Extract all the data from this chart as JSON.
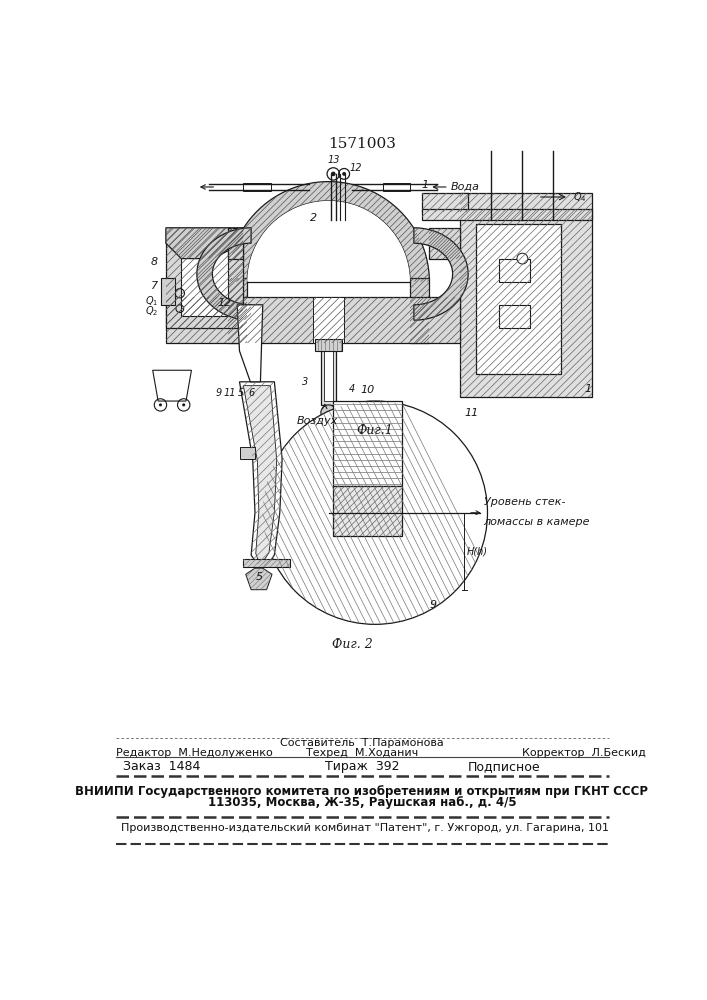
{
  "patent_number": "1571003",
  "fig1_caption": "Фиг.1",
  "fig2_caption": "Фиг. 2",
  "composer": "Составитель  Т.Парамонова",
  "editor": "Редактор  М.Недолуженко",
  "techred": "Техред  М.Ходанич",
  "corrector": "Корректор  Л.Бескид",
  "order": "Заказ  1484",
  "tirage": "Тираж  392",
  "subscription": "Подписное",
  "vniigi_line1": "ВНИИПИ Государственного комитета по изобретениям и открытиям при ГКНТ СССР",
  "vniigi_line2": "113035, Москва, Ж-35, Раушская наб., д. 4/5",
  "factory_line": "Производственно-издательский комбинат \"Патент\", г. Ужгород, ул. Гагарина, 101",
  "bg_color": "#ffffff",
  "line_color": "#1a1a1a",
  "hatch_color": "#333333",
  "voda": "Вода",
  "vozduh": "Воздух",
  "uroven1": "Уровень стек-",
  "uroven2": "ломассы в камере",
  "Hh": "H(h)"
}
